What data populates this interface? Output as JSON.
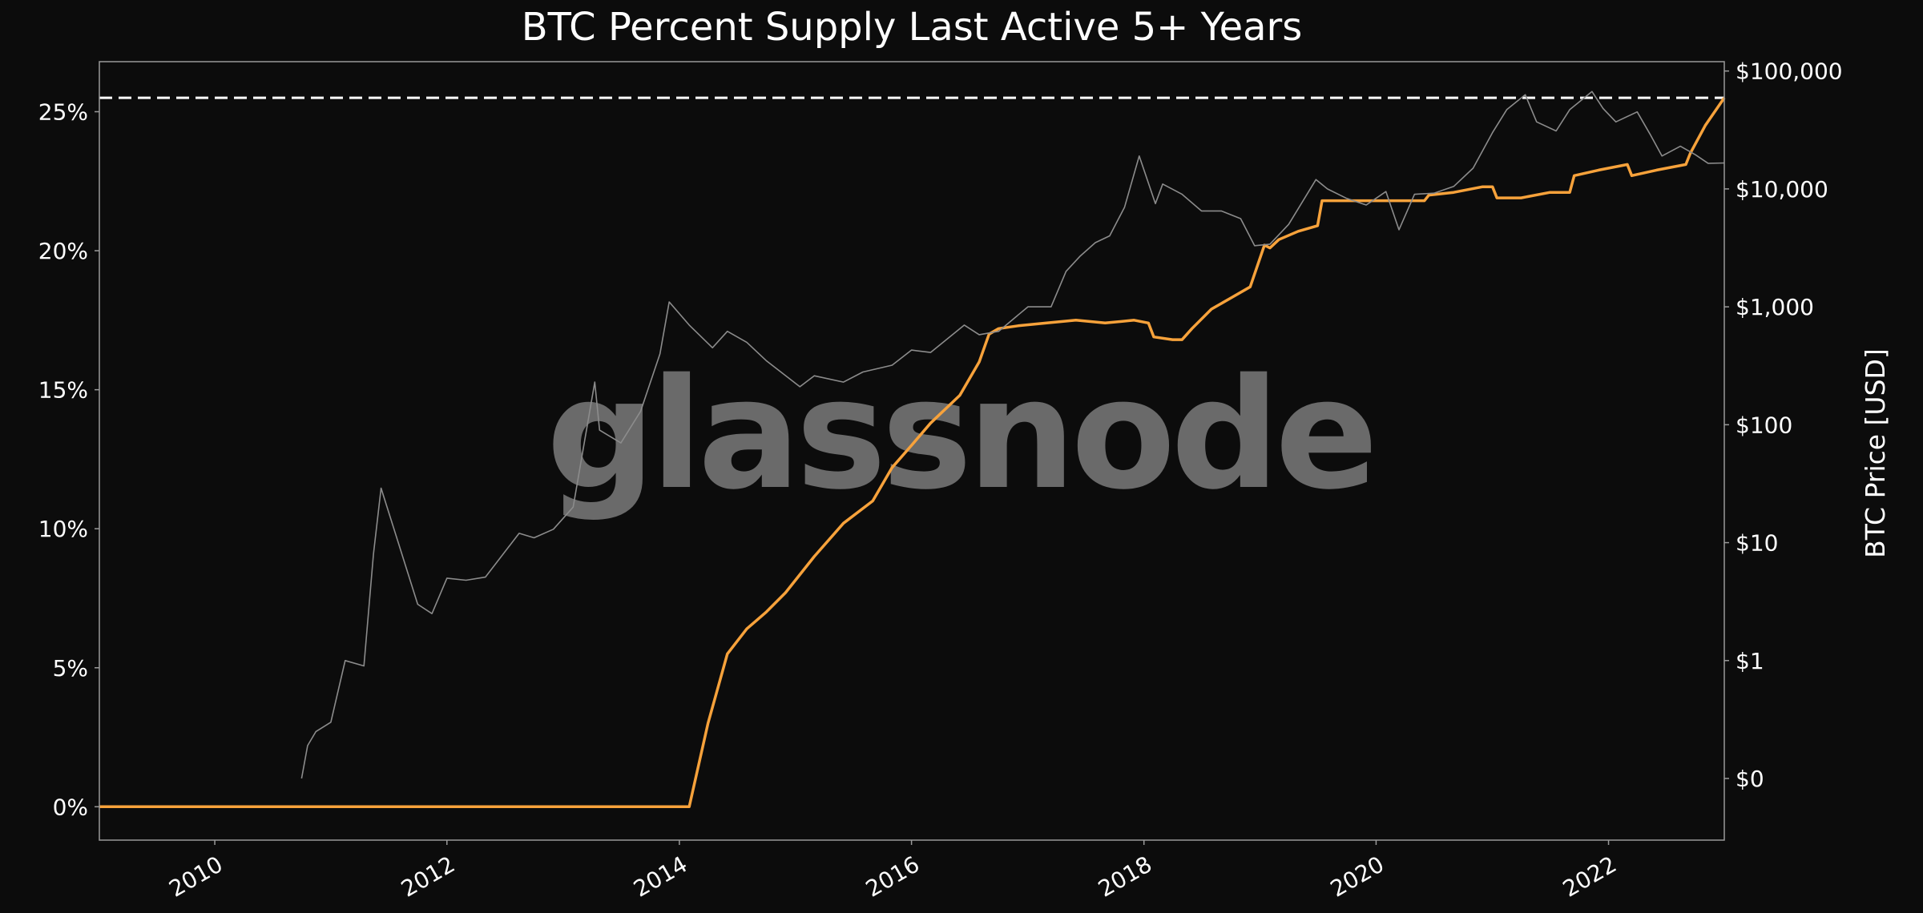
{
  "chart_data": {
    "type": "line",
    "title": "BTC Percent Supply Last Active 5+ Years",
    "watermark": "glassnode",
    "xlabel": "",
    "ylabel": "",
    "ylabel_right": "BTC Price [USD]",
    "x_range": [
      "2009-01-03",
      "2022-12-31"
    ],
    "x_ticks": [
      "2010",
      "2012",
      "2014",
      "2016",
      "2018",
      "2020",
      "2022"
    ],
    "y_left": {
      "range": [
        -1.2,
        26.8
      ],
      "ticks": [
        "0%",
        "5%",
        "10%",
        "15%",
        "20%",
        "25%"
      ],
      "tick_values": [
        0,
        5,
        10,
        15,
        20,
        25
      ]
    },
    "y_right": {
      "scale": "log",
      "range": [
        0.03,
        120000
      ],
      "ticks": [
        "$0",
        "$1",
        "$10",
        "$100",
        "$1,000",
        "$10,000",
        "$100,000"
      ],
      "tick_values": [
        0.1,
        1,
        10,
        100,
        1000,
        10000,
        100000
      ]
    },
    "reference_line": {
      "axis": "left",
      "value": 25.5,
      "style": "dashed",
      "color": "#ffffff"
    },
    "grid": false,
    "legend": "none",
    "series": [
      {
        "axis": "left",
        "color": "#f7a23b",
        "x": [
          "2009-01-03",
          "2014-02-01",
          "2014-04-01",
          "2014-06-01",
          "2014-08-01",
          "2014-10-01",
          "2014-12-01",
          "2015-03-01",
          "2015-06-01",
          "2015-09-01",
          "2015-11-01",
          "2016-01-01",
          "2016-03-01",
          "2016-06-01",
          "2016-08-01",
          "2016-09-01",
          "2016-10-01",
          "2016-12-01",
          "2017-03-01",
          "2017-06-01",
          "2017-09-01",
          "2017-12-01",
          "2018-01-15",
          "2018-02-01",
          "2018-04-01",
          "2018-05-01",
          "2018-06-01",
          "2018-08-01",
          "2018-10-01",
          "2018-12-01",
          "2019-01-15",
          "2019-02-01",
          "2019-03-01",
          "2019-05-01",
          "2019-07-01",
          "2019-07-15",
          "2019-10-01",
          "2020-01-01",
          "2020-04-01",
          "2020-06-01",
          "2020-06-15",
          "2020-09-01",
          "2020-12-01",
          "2021-01-01",
          "2021-01-15",
          "2021-04-01",
          "2021-07-01",
          "2021-09-01",
          "2021-09-15",
          "2021-12-01",
          "2022-03-01",
          "2022-03-15",
          "2022-06-01",
          "2022-09-01",
          "2022-09-15",
          "2022-11-01",
          "2022-12-31"
        ],
        "y": [
          0.0,
          0.0,
          3.0,
          5.5,
          6.4,
          7.0,
          7.7,
          9.0,
          10.2,
          11.0,
          12.2,
          13.0,
          13.8,
          14.8,
          16.0,
          17.0,
          17.2,
          17.3,
          17.4,
          17.5,
          17.4,
          17.5,
          17.4,
          16.9,
          16.8,
          16.8,
          17.2,
          17.9,
          18.3,
          18.7,
          20.2,
          20.1,
          20.4,
          20.7,
          20.9,
          21.8,
          21.8,
          21.8,
          21.8,
          21.8,
          22.0,
          22.1,
          22.3,
          22.3,
          21.9,
          21.9,
          22.1,
          22.1,
          22.7,
          22.9,
          23.1,
          22.7,
          22.9,
          23.1,
          23.5,
          24.5,
          25.5
        ]
      },
      {
        "axis": "right",
        "color": "#8c8c8c",
        "x": [
          "2010-10-01",
          "2010-10-20",
          "2010-11-15",
          "2011-01-01",
          "2011-02-15",
          "2011-04-15",
          "2011-05-15",
          "2011-06-08",
          "2011-08-01",
          "2011-10-01",
          "2011-11-15",
          "2012-01-01",
          "2012-03-01",
          "2012-05-01",
          "2012-08-15",
          "2012-10-01",
          "2012-12-01",
          "2013-02-01",
          "2013-04-10",
          "2013-04-25",
          "2013-07-01",
          "2013-09-01",
          "2013-11-01",
          "2013-11-30",
          "2014-02-01",
          "2014-04-15",
          "2014-06-01",
          "2014-08-01",
          "2014-10-01",
          "2015-01-15",
          "2015-03-01",
          "2015-06-01",
          "2015-08-01",
          "2015-11-01",
          "2016-01-01",
          "2016-03-01",
          "2016-06-15",
          "2016-08-01",
          "2016-10-01",
          "2017-01-01",
          "2017-03-15",
          "2017-05-01",
          "2017-06-15",
          "2017-08-01",
          "2017-09-15",
          "2017-11-01",
          "2017-12-17",
          "2018-02-06",
          "2018-03-01",
          "2018-05-01",
          "2018-07-01",
          "2018-09-01",
          "2018-11-01",
          "2018-12-15",
          "2019-02-01",
          "2019-04-01",
          "2019-06-26",
          "2019-08-01",
          "2019-10-01",
          "2019-12-01",
          "2020-02-01",
          "2020-03-13",
          "2020-05-01",
          "2020-07-01",
          "2020-09-01",
          "2020-11-01",
          "2021-01-01",
          "2021-02-15",
          "2021-04-14",
          "2021-05-20",
          "2021-07-20",
          "2021-09-01",
          "2021-11-10",
          "2021-12-15",
          "2022-01-24",
          "2022-04-01",
          "2022-05-12",
          "2022-06-18",
          "2022-08-15",
          "2022-10-01",
          "2022-11-10",
          "2022-12-31"
        ],
        "y": [
          0.1,
          0.19,
          0.25,
          0.3,
          1.0,
          0.9,
          8.0,
          29.0,
          10.0,
          3.0,
          2.5,
          5.0,
          4.8,
          5.1,
          12.0,
          11.0,
          13.0,
          20.0,
          230,
          90,
          70,
          130,
          400,
          1100,
          700,
          450,
          620,
          500,
          350,
          210,
          260,
          230,
          280,
          320,
          430,
          410,
          700,
          580,
          620,
          1000,
          1000,
          2000,
          2700,
          3500,
          4000,
          7000,
          19000,
          7500,
          11000,
          9000,
          6500,
          6500,
          5600,
          3300,
          3400,
          5000,
          12000,
          10000,
          8300,
          7300,
          9500,
          4500,
          9000,
          9200,
          10500,
          15000,
          30000,
          47000,
          63000,
          37000,
          31000,
          47000,
          67000,
          48000,
          37000,
          45000,
          29000,
          19000,
          23000,
          19500,
          16500,
          16600
        ]
      }
    ]
  }
}
